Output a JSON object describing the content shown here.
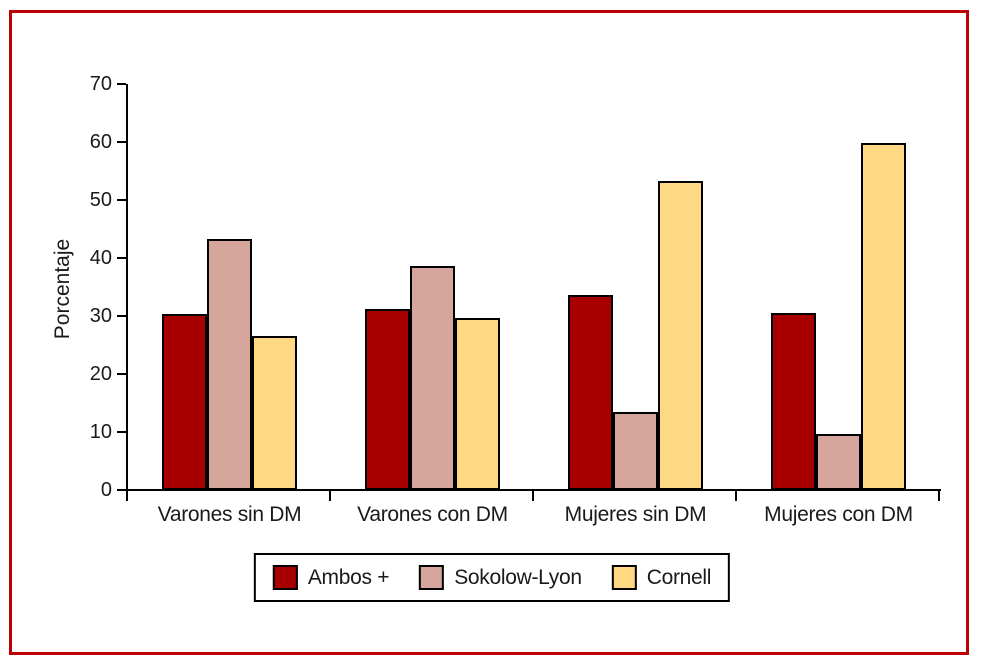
{
  "page": {
    "background": "#ffffff",
    "border_color": "#bb0008"
  },
  "chart_data": {
    "type": "bar",
    "title": "",
    "xlabel": "",
    "ylabel": "Porcentaje",
    "ylim": [
      0,
      70
    ],
    "yticks": [
      0,
      10,
      20,
      30,
      40,
      50,
      60,
      70
    ],
    "grid": false,
    "legend_position": "bottom",
    "categories": [
      "Varones sin DM",
      "Varones con DM",
      "Mujeres sin DM",
      "Mujeres con DM"
    ],
    "series": [
      {
        "name": "Ambos +",
        "color": "#a80000",
        "values": [
          30.4,
          31.2,
          33.6,
          30.5
        ]
      },
      {
        "name": "Sokolow-Lyon",
        "color": "#d6a59c",
        "values": [
          43.2,
          38.7,
          13.5,
          9.6
        ]
      },
      {
        "name": "Cornell",
        "color": "#ffd884",
        "values": [
          26.5,
          29.7,
          53.2,
          59.8
        ]
      }
    ]
  }
}
